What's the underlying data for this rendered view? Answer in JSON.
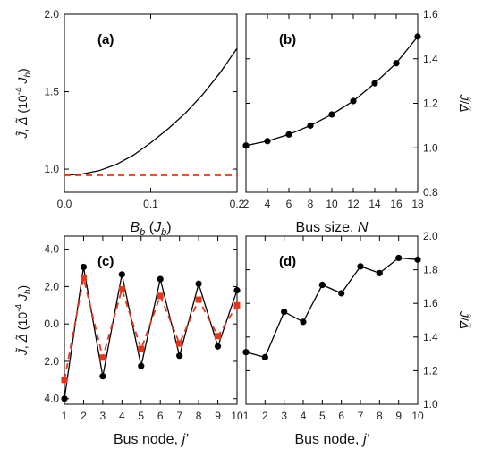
{
  "chart_data": [
    {
      "panel": "(a)",
      "type": "line",
      "xlabel": "B_b (J_b)",
      "ylabel": "J̃, Δ̃ (10^-4 J_b)",
      "xlim": [
        0,
        0.2
      ],
      "ylim": [
        0.85,
        2.0
      ],
      "x_ticks": [
        "0.0",
        "0.1",
        "0.2"
      ],
      "y_ticks": [
        "1.0",
        "1.5",
        "2.0"
      ],
      "y_side": "left",
      "series": [
        {
          "style": "solid",
          "color": "#000000",
          "x": [
            0,
            0.02,
            0.04,
            0.06,
            0.08,
            0.1,
            0.12,
            0.14,
            0.16,
            0.18,
            0.2
          ],
          "y": [
            0.96,
            0.968,
            0.99,
            1.03,
            1.09,
            1.17,
            1.26,
            1.36,
            1.48,
            1.62,
            1.78
          ]
        },
        {
          "style": "dashed",
          "color": "#e8351a",
          "x": [
            0,
            0.2
          ],
          "y": [
            0.96,
            0.96
          ]
        }
      ]
    },
    {
      "panel": "(b)",
      "type": "line",
      "xlabel": "Bus size, N",
      "ylabel": "J̃/Δ̃",
      "xlim": [
        2,
        18
      ],
      "ylim": [
        0.8,
        1.6
      ],
      "x_ticks": [
        "2",
        "4",
        "6",
        "8",
        "10",
        "12",
        "14",
        "16",
        "18"
      ],
      "y_ticks": [
        "0.8",
        "1.0",
        "1.2",
        "1.4",
        "1.6"
      ],
      "y_side": "right",
      "series": [
        {
          "style": "solid-markers",
          "color": "#000000",
          "x": [
            2,
            4,
            6,
            8,
            10,
            12,
            14,
            16,
            18
          ],
          "y": [
            1.01,
            1.03,
            1.06,
            1.1,
            1.15,
            1.21,
            1.29,
            1.38,
            1.5
          ]
        }
      ]
    },
    {
      "panel": "(c)",
      "type": "line",
      "xlabel": "Bus node, j'",
      "ylabel": "J̃, Δ̃ (10^-4 J_b)",
      "xlim": [
        1,
        10
      ],
      "ylim": [
        -4.3,
        4.7
      ],
      "x_ticks": [
        "1",
        "2",
        "3",
        "4",
        "5",
        "6",
        "7",
        "8",
        "9",
        "10"
      ],
      "y_ticks": [
        "4.0",
        "2.0",
        "0.0",
        "2.0",
        "4.0"
      ],
      "y_tick_values": [
        -4,
        -2,
        0,
        2,
        4
      ],
      "y_side": "left",
      "series": [
        {
          "style": "solid-markers",
          "color": "#000000",
          "x": [
            1,
            2,
            3,
            4,
            5,
            6,
            7,
            8,
            9,
            10
          ],
          "y": [
            -4.0,
            3.05,
            -2.8,
            2.65,
            -2.25,
            2.4,
            -1.7,
            2.15,
            -1.2,
            1.8
          ]
        },
        {
          "style": "dashed-markers",
          "color": "#e8351a",
          "x": [
            1,
            2,
            3,
            4,
            5,
            6,
            7,
            8,
            9,
            10
          ],
          "y": [
            -3.0,
            2.45,
            -1.8,
            1.85,
            -1.35,
            1.5,
            -1.05,
            1.3,
            -0.65,
            1.0
          ]
        }
      ]
    },
    {
      "panel": "(d)",
      "type": "line",
      "xlabel": "Bus node, j'",
      "ylabel": "J̃/Δ̃",
      "xlim": [
        1,
        10
      ],
      "ylim": [
        1.0,
        2.0
      ],
      "x_ticks": [
        "1",
        "2",
        "3",
        "4",
        "5",
        "6",
        "7",
        "8",
        "9",
        "10"
      ],
      "y_ticks": [
        "1.0",
        "1.2",
        "1.4",
        "1.6",
        "1.8",
        "2.0"
      ],
      "y_side": "right",
      "series": [
        {
          "style": "solid-markers",
          "color": "#000000",
          "x": [
            1,
            2,
            3,
            4,
            5,
            6,
            7,
            8,
            9,
            10
          ],
          "y": [
            1.31,
            1.28,
            1.55,
            1.49,
            1.71,
            1.66,
            1.82,
            1.78,
            1.87,
            1.86
          ]
        }
      ]
    }
  ]
}
